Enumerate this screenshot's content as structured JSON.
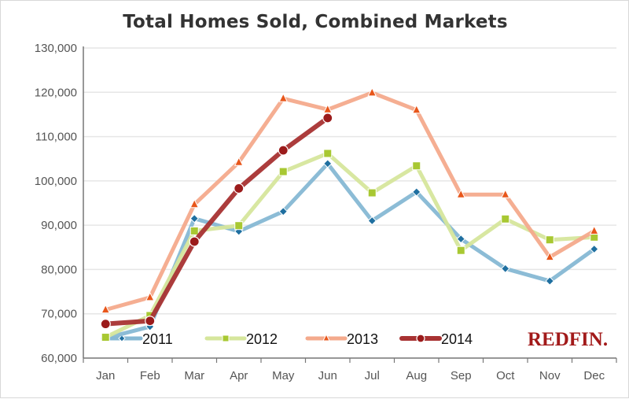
{
  "chart_data": {
    "type": "line",
    "title": "Total Homes Sold, Combined Markets",
    "xlabel": "",
    "ylabel": "",
    "categories": [
      "Jan",
      "Feb",
      "Mar",
      "Apr",
      "May",
      "Jun",
      "Jul",
      "Aug",
      "Sep",
      "Oct",
      "Nov",
      "Dec"
    ],
    "ylim": [
      60000,
      130000
    ],
    "yticks": [
      60000,
      70000,
      80000,
      90000,
      100000,
      110000,
      120000,
      130000
    ],
    "ytick_labels": [
      "60,000",
      "70,000",
      "80,000",
      "90,000",
      "100,000",
      "110,000",
      "120,000",
      "130,000"
    ],
    "grid": true,
    "legend_position": "bottom-inside",
    "series": [
      {
        "name": "2011",
        "marker": "diamond",
        "line_color": "#86b8d4",
        "marker_color": "#1f6fa0",
        "values": [
          64500,
          67100,
          91500,
          88600,
          93100,
          103900,
          91000,
          97500,
          86900,
          80200,
          77400,
          84600
        ]
      },
      {
        "name": "2012",
        "marker": "square",
        "line_color": "#d6e69c",
        "marker_color": "#a8c832",
        "values": [
          64700,
          69600,
          88700,
          89900,
          102100,
          106200,
          97300,
          103400,
          84300,
          91400,
          86700,
          87300
        ]
      },
      {
        "name": "2013",
        "marker": "triangle",
        "line_color": "#f4aa8c",
        "marker_color": "#e8561a",
        "values": [
          70900,
          73700,
          94700,
          104200,
          118600,
          116100,
          119900,
          116000,
          96900,
          96900,
          82800,
          88700
        ]
      },
      {
        "name": "2014",
        "marker": "circle",
        "line_color": "#a83232",
        "marker_color": "#9b1b1b",
        "values": [
          67700,
          68400,
          86300,
          98300,
          106900,
          114200,
          null,
          null,
          null,
          null,
          null,
          null
        ]
      }
    ]
  },
  "logo": {
    "text": "REDFIN.",
    "color": "#a21a1a"
  }
}
